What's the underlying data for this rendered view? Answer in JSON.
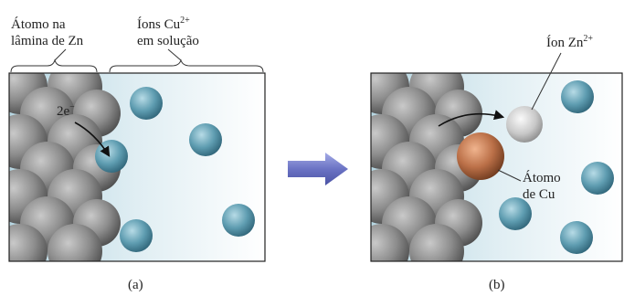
{
  "panel_a": {
    "label_zn_atom_line1": "Átomo na",
    "label_zn_atom_line2": "lâmina de Zn",
    "label_cu_ions_base": "Íons Cu",
    "label_cu_ions_charge": "2+",
    "label_cu_ions_line2": "em solução",
    "electron_base": "2e",
    "electron_sign": "−",
    "caption": "(a)"
  },
  "panel_b": {
    "label_zn_ion_base": "Íon Zn",
    "label_zn_ion_charge": "2+",
    "label_cu_atom_line1": "Átomo",
    "label_cu_atom_line2": "de Cu",
    "caption": "(b)"
  },
  "colors": {
    "zinc_gray": "#8a8a8a",
    "copper_ion_blue": "#5b98ad",
    "copper_atom": "#b86d45",
    "solution_blue": "#c9e1ea",
    "arrow_blue": "#6d74c4"
  }
}
